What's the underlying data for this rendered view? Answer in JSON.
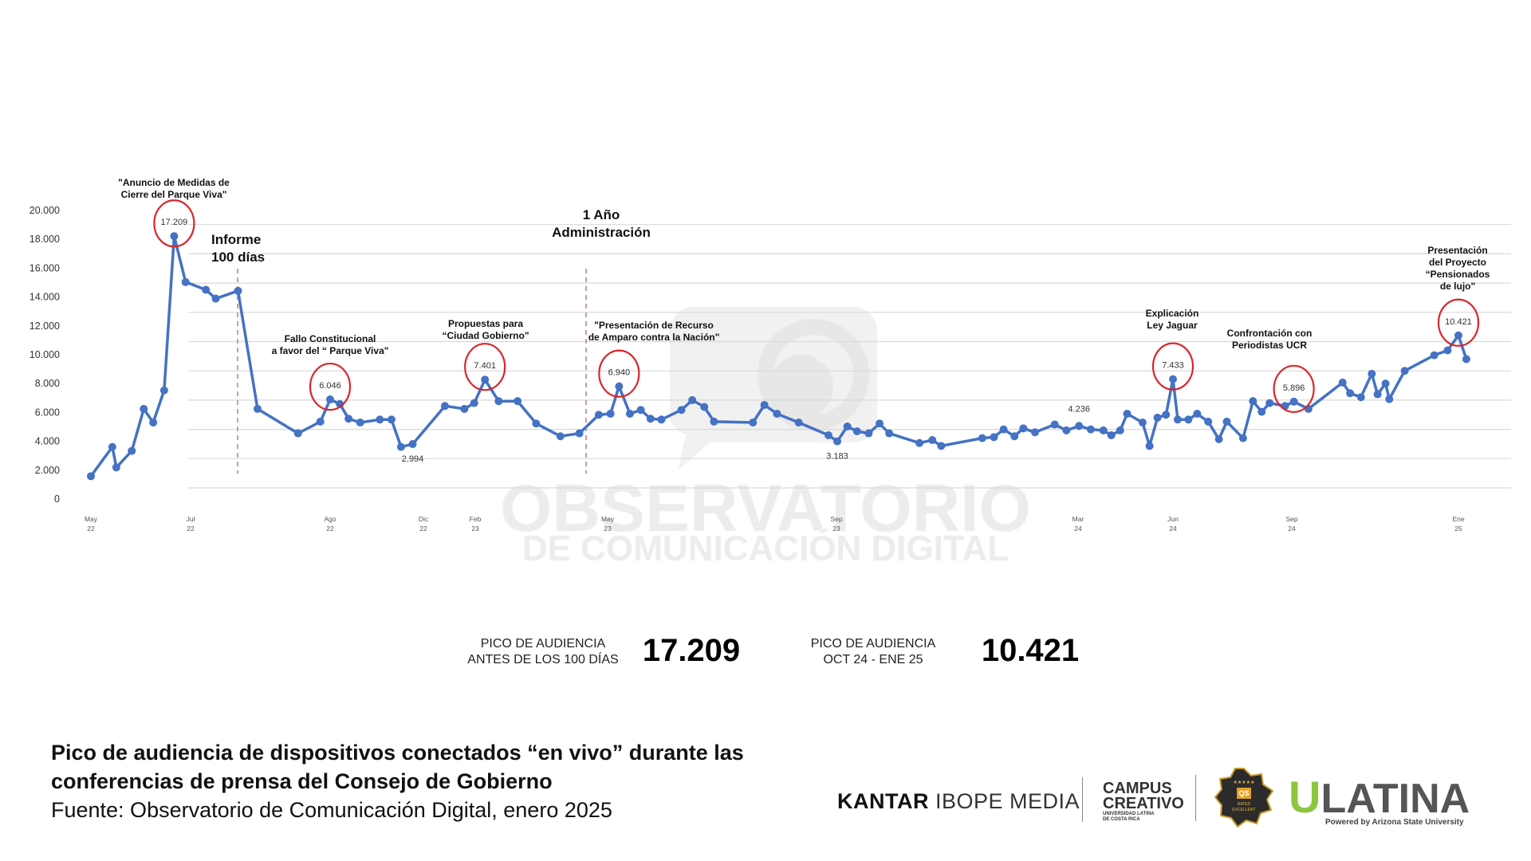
{
  "colors": {
    "line": "#4472c4",
    "highlight": "#d9262b",
    "grid": "#d9d9d9",
    "dashed": "#c27b82",
    "watermark": "#ececec"
  },
  "watermark": {
    "line1": "OBSERVATORIO",
    "line2": "DE COMUNICACIÓN DIGITAL"
  },
  "annotations": {
    "anuncio": [
      "\"Anuncio de Medidas de",
      "Cierre del Parque Viva\""
    ],
    "informe": [
      "Informe",
      "100 días"
    ],
    "anio": [
      "1 Año",
      "Administración"
    ],
    "fallo": [
      "Fallo Constitucional",
      "a favor del “ Parque Viva\""
    ],
    "propuestas": [
      "Propuestas para",
      "“Ciudad Gobierno\""
    ],
    "recurso": [
      "\"Presentación de Recurso",
      "de Amparo contra la Nación\""
    ],
    "jaguar": [
      "Explicación",
      "Ley Jaguar"
    ],
    "ucr": [
      "Confrontación con",
      "Periodistas UCR"
    ],
    "pensionados": [
      "Presentación",
      "del Proyecto",
      "“Pensionados",
      "de lujo\""
    ]
  },
  "chart_data": {
    "type": "line",
    "title": "Pico de audiencia de dispositivos conectados “en vivo” durante las conferencias de prensa del Consejo de Gobierno",
    "xlabel": "",
    "ylabel": "",
    "ylim": [
      0,
      20000
    ],
    "grid": true,
    "y_ticks": [
      "20.000",
      "18.000",
      "16.000",
      "14.000",
      "12.000",
      "10.000",
      "8.000",
      "6.000",
      "4.000",
      "2.000",
      "0"
    ],
    "x_ticks": [
      {
        "month": 0,
        "label": [
          "May",
          "22"
        ]
      },
      {
        "month": 2,
        "label": [
          "Jul",
          "22"
        ]
      },
      {
        "month": 3,
        "label": [
          "Ago",
          "22"
        ]
      },
      {
        "month": 7,
        "label": [
          "Dic",
          "22"
        ]
      },
      {
        "month": 9,
        "label": [
          "Feb",
          "23"
        ]
      },
      {
        "month": 12,
        "label": [
          "May",
          "23"
        ]
      },
      {
        "month": 16,
        "label": [
          "Sep",
          "23"
        ]
      },
      {
        "month": 22,
        "label": [
          "Mar",
          "24"
        ]
      },
      {
        "month": 25,
        "label": [
          "Jun",
          "24"
        ]
      },
      {
        "month": 28,
        "label": [
          "Sep",
          "24"
        ]
      },
      {
        "month": 32,
        "label": [
          "Ene",
          "25"
        ]
      }
    ],
    "x_unit": "months since May 2022",
    "series": [
      {
        "name": "Pico de audiencia",
        "x": [
          0,
          0.43,
          0.51,
          0.82,
          1.06,
          1.25,
          1.47,
          1.67,
          1.9,
          2.11,
          2.18,
          2.34,
          2.48,
          2.77,
          2.93,
          3.0,
          3.42,
          3.79,
          4.29,
          5.13,
          5.63,
          6.04,
          6.54,
          7.83,
          8.58,
          8.96,
          9.22,
          9.53,
          9.96,
          10.38,
          10.93,
          11.36,
          11.8,
          12.05,
          12.2,
          12.39,
          12.58,
          12.75,
          12.94,
          13.29,
          13.48,
          13.69,
          13.86,
          14.54,
          14.74,
          14.96,
          15.34,
          15.86,
          16.02,
          16.27,
          16.51,
          16.8,
          17.07,
          17.31,
          18.06,
          18.38,
          18.6,
          19.62,
          19.91,
          20.15,
          20.42,
          20.64,
          20.93,
          21.42,
          21.71,
          22.03,
          22.4,
          22.8,
          23.05,
          23.33,
          23.55,
          24.04,
          24.26,
          24.51,
          24.78,
          25.0,
          25.12,
          25.39,
          25.61,
          25.89,
          26.16,
          26.36,
          26.77,
          27.02,
          27.24,
          27.44,
          27.83,
          28.05,
          28.4,
          29.22,
          29.4,
          29.66,
          29.92,
          30.06,
          30.25,
          30.34,
          30.71,
          31.42,
          31.74,
          32.0,
          32.19
        ],
        "values": [
          800,
          2800,
          1400,
          2530,
          5400,
          4470,
          6670,
          17209,
          14070,
          13540,
          12940,
          13470,
          5400,
          3730,
          4530,
          6046,
          5730,
          4730,
          4470,
          4670,
          4670,
          2800,
          2994,
          5600,
          5400,
          5800,
          7401,
          5930,
          5930,
          4400,
          3530,
          3730,
          5000,
          5070,
          6940,
          5070,
          5330,
          4730,
          4670,
          5330,
          6000,
          5530,
          4530,
          4470,
          5670,
          5070,
          4470,
          3600,
          3183,
          4200,
          3870,
          3730,
          4400,
          3730,
          3070,
          3270,
          2870,
          3400,
          3470,
          4000,
          3530,
          4070,
          3800,
          4330,
          3930,
          4236,
          4000,
          3930,
          3600,
          3930,
          5070,
          4470,
          2870,
          4800,
          5000,
          7433,
          4670,
          4670,
          5070,
          4530,
          3330,
          4530,
          3400,
          5930,
          5200,
          5800,
          5600,
          5896,
          5400,
          7200,
          6470,
          6200,
          7800,
          6400,
          7130,
          6070,
          8000,
          9070,
          9400,
          10421,
          8800
        ]
      }
    ],
    "highlights": [
      {
        "label": "17.209",
        "index": 7,
        "circled": true
      },
      {
        "label": "6.046",
        "index": 15,
        "circled": true
      },
      {
        "label": "7.401",
        "index": 26,
        "circled": true
      },
      {
        "label": "6.940",
        "index": 34,
        "circled": true
      },
      {
        "label": "7.433",
        "index": 75,
        "circled": true
      },
      {
        "label": "5.896",
        "index": 87,
        "circled": true
      },
      {
        "label": "10.421",
        "index": 99,
        "circled": true
      },
      {
        "label": "2.994",
        "index": 22,
        "circled": false
      },
      {
        "label": "3.183",
        "index": 48,
        "circled": false
      },
      {
        "label": "4.236",
        "index": 65,
        "circled": false
      }
    ]
  },
  "stats": [
    {
      "label": [
        "PICO DE AUDIENCIA",
        "ANTES DE LOS 100 DÍAS"
      ],
      "value": "17.209"
    },
    {
      "label": [
        "PICO DE AUDIENCIA",
        "OCT 24 - ENE 25"
      ],
      "value": "10.421"
    }
  ],
  "footer": {
    "title_line1": "Pico de audiencia de dispositivos conectados “en vivo” durante las",
    "title_line2": "conferencias de prensa del Consejo de Gobierno",
    "source": "Fuente: Observatorio de Comunicación Digital, enero 2025"
  },
  "logos": {
    "kantar": "KANTAR",
    "ibope": "IBOPE MEDIA",
    "campus1": "CAMPUS",
    "campus2": "CREATIVO",
    "campus3": "UNIVERSIDAD LATINA",
    "campus4": "DE COSTA RICA",
    "qs_stars": "★★★★★",
    "qs": "QS",
    "qs_rated": "RATED",
    "qs_excellent": "EXCELLENT",
    "ulatina_u": "U",
    "ulatina": "LATINA",
    "ulatina_sub": "Powered by Arizona State University"
  }
}
